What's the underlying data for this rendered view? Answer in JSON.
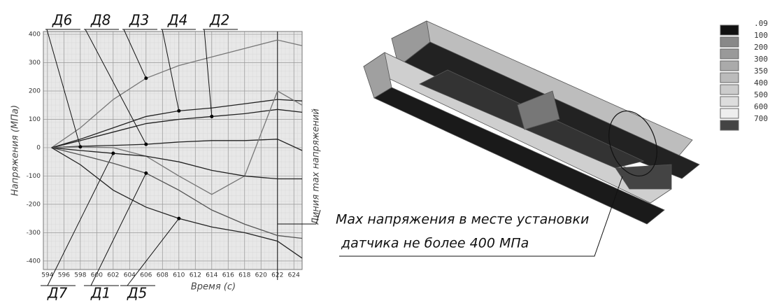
{
  "chart_data": {
    "type": "line",
    "y_label": "Напряжения (МПа)",
    "x_label": "Время (с)",
    "x": [
      594.5,
      598,
      602,
      606,
      610,
      614,
      618,
      622,
      625
    ],
    "series": [
      {
        "name": "Д3",
        "color": "#777777",
        "values": [
          0,
          70,
          170,
          245,
          290,
          320,
          350,
          380,
          360
        ]
      },
      {
        "name": "Д4",
        "color": "#222222",
        "values": [
          0,
          30,
          70,
          110,
          130,
          140,
          155,
          170,
          165
        ]
      },
      {
        "name": "Д2",
        "color": "#222222",
        "values": [
          0,
          25,
          55,
          85,
          100,
          110,
          120,
          135,
          125
        ]
      },
      {
        "name": "Д8",
        "color": "#222222",
        "values": [
          0,
          5,
          8,
          12,
          20,
          25,
          25,
          30,
          -10
        ]
      },
      {
        "name": "Д6",
        "color": "#777777",
        "values": [
          0,
          3,
          0,
          -30,
          -100,
          -165,
          -100,
          200,
          150
        ]
      },
      {
        "name": "Д7",
        "color": "#222222",
        "values": [
          0,
          -10,
          -20,
          -30,
          -50,
          -80,
          -100,
          -110,
          -110
        ]
      },
      {
        "name": "Д1",
        "color": "#555555",
        "values": [
          0,
          -25,
          -55,
          -90,
          -150,
          -220,
          -270,
          -310,
          -320
        ]
      },
      {
        "name": "Д5",
        "color": "#222222",
        "values": [
          0,
          -60,
          -150,
          -210,
          -250,
          -280,
          -300,
          -330,
          -390
        ]
      }
    ],
    "xlim": [
      593.5,
      625
    ],
    "ylim": [
      -430,
      410
    ],
    "xticks": [
      594,
      596,
      598,
      600,
      602,
      604,
      606,
      608,
      610,
      612,
      614,
      616,
      618,
      620,
      622,
      624
    ],
    "yticks": [
      -400,
      -300,
      -200,
      -100,
      0,
      100,
      200,
      300,
      400
    ],
    "grid": true,
    "vline": {
      "x": 622,
      "label": "Линия max напряжений"
    }
  },
  "figure": {
    "legend": [
      {
        "label": ".09",
        "color": "#111111"
      },
      {
        "label": "100",
        "color": "#888888"
      },
      {
        "label": "200",
        "color": "#999999"
      },
      {
        "label": "300",
        "color": "#aaaaaa"
      },
      {
        "label": "350",
        "color": "#bbbbbb"
      },
      {
        "label": "400",
        "color": "#cccccc"
      },
      {
        "label": "500",
        "color": "#dddddd"
      },
      {
        "label": "600",
        "color": "#eeeeee"
      },
      {
        "label": "700",
        "color": "#444444"
      }
    ],
    "caption": [
      "Max напряжения в месте установки",
      "датчика не более 400 МПа"
    ]
  }
}
